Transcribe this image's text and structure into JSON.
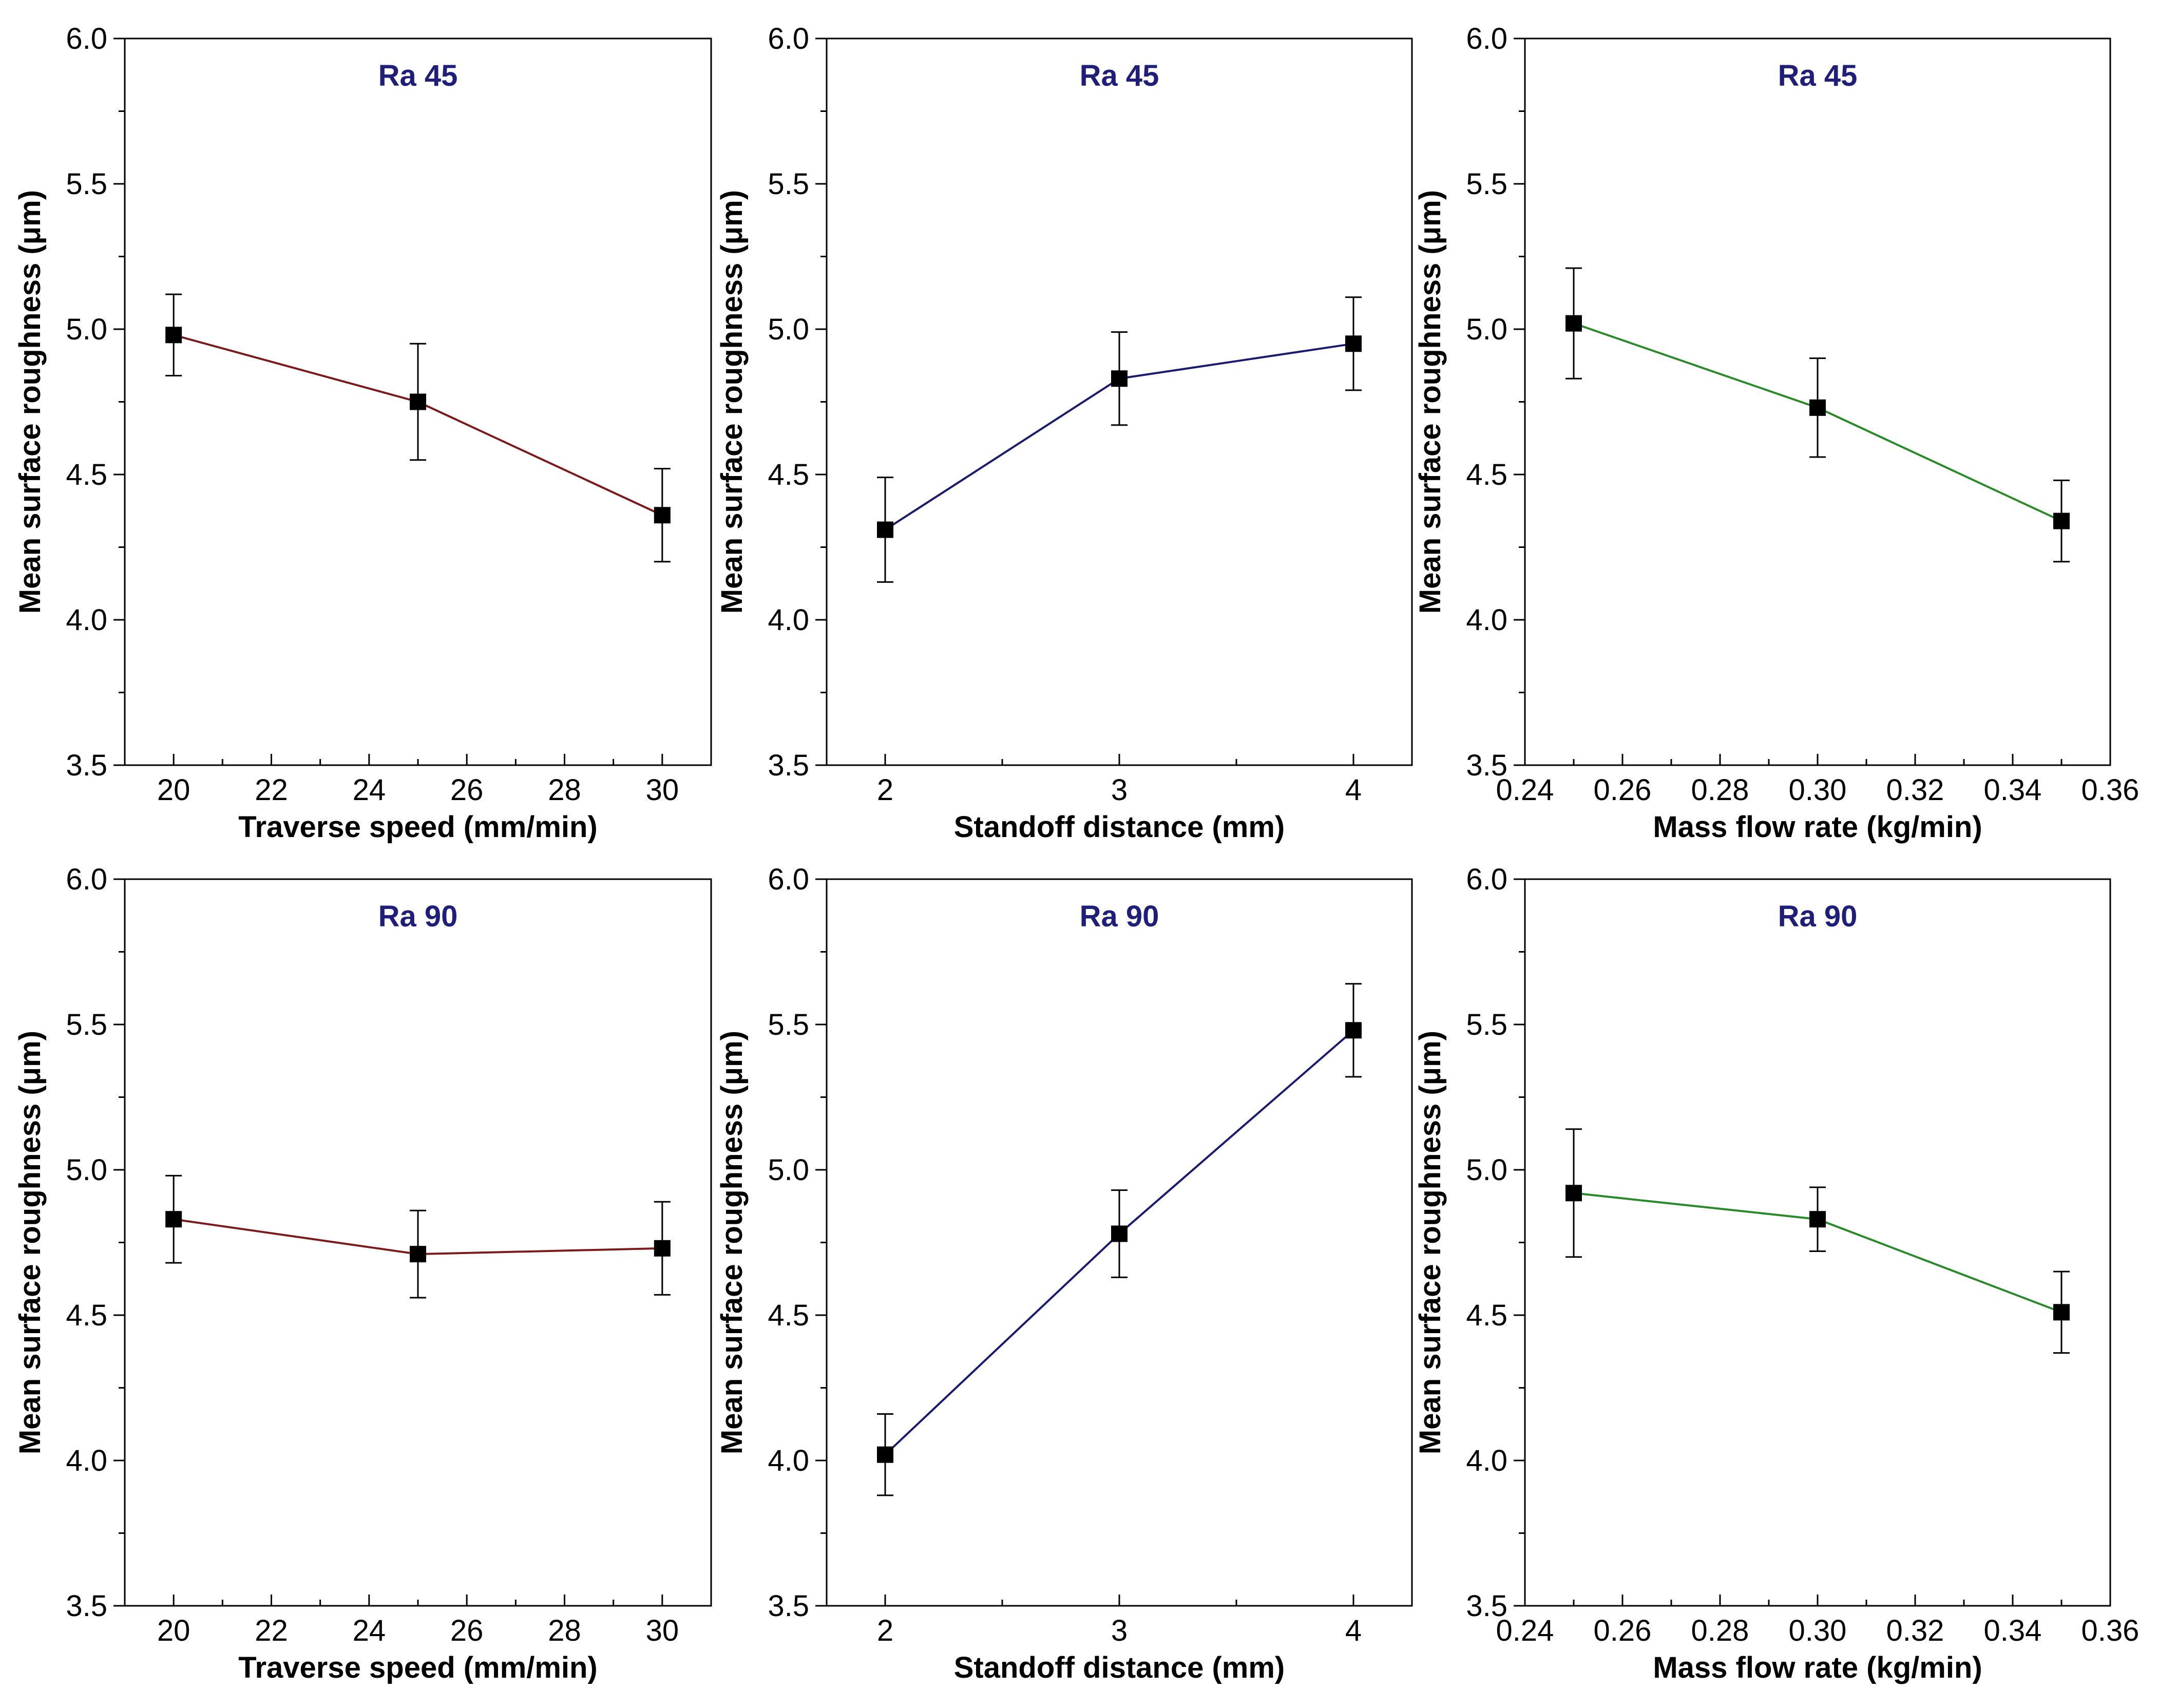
{
  "figure": {
    "colors": {
      "axis": "#000000",
      "title": "#1f1f7a",
      "marker": "#000000"
    }
  },
  "chart_data": [
    {
      "type": "line",
      "title": "Ra 45",
      "xlabel": "Traverse speed (mm/min)",
      "ylabel": "Mean surface roughness (μm)",
      "x": [
        20,
        25,
        30
      ],
      "y": [
        4.98,
        4.75,
        4.36
      ],
      "error": [
        0.14,
        0.2,
        0.16
      ],
      "xlim": [
        19,
        31
      ],
      "ylim": [
        3.5,
        6.0
      ],
      "xticks": [
        20,
        22,
        24,
        26,
        28,
        30
      ],
      "xtick_labels": [
        "20",
        "22",
        "24",
        "26",
        "28",
        "30"
      ],
      "yticks": [
        3.5,
        4.0,
        4.5,
        5.0,
        5.5,
        6.0
      ],
      "ytick_labels": [
        "3.5",
        "4.0",
        "4.5",
        "5.0",
        "5.5",
        "6.0"
      ],
      "line_color": "#7a1a1a",
      "grid": false
    },
    {
      "type": "line",
      "title": "Ra 45",
      "xlabel": "Standoff distance (mm)",
      "ylabel": "Mean surface roughness (μm)",
      "x": [
        2,
        3,
        4
      ],
      "y": [
        4.31,
        4.83,
        4.95
      ],
      "error": [
        0.18,
        0.16,
        0.16
      ],
      "xlim": [
        1.75,
        4.25
      ],
      "ylim": [
        3.5,
        6.0
      ],
      "xticks": [
        2,
        3,
        4
      ],
      "xtick_labels": [
        "2",
        "3",
        "4"
      ],
      "yticks": [
        3.5,
        4.0,
        4.5,
        5.0,
        5.5,
        6.0
      ],
      "ytick_labels": [
        "3.5",
        "4.0",
        "4.5",
        "5.0",
        "5.5",
        "6.0"
      ],
      "line_color": "#1a1a6e",
      "grid": false
    },
    {
      "type": "line",
      "title": "Ra 45",
      "xlabel": "Mass flow rate (kg/min)",
      "ylabel": "Mean surface roughness (μm)",
      "x": [
        0.25,
        0.3,
        0.35
      ],
      "y": [
        5.02,
        4.73,
        4.34
      ],
      "error": [
        0.19,
        0.17,
        0.14
      ],
      "xlim": [
        0.24,
        0.36
      ],
      "ylim": [
        3.5,
        6.0
      ],
      "xticks": [
        0.24,
        0.26,
        0.28,
        0.3,
        0.32,
        0.34,
        0.36
      ],
      "xtick_labels": [
        "0.24",
        "0.26",
        "0.28",
        "0.30",
        "0.32",
        "0.34",
        "0.36"
      ],
      "yticks": [
        3.5,
        4.0,
        4.5,
        5.0,
        5.5,
        6.0
      ],
      "ytick_labels": [
        "3.5",
        "4.0",
        "4.5",
        "5.0",
        "5.5",
        "6.0"
      ],
      "line_color": "#2a8a2a",
      "grid": false
    },
    {
      "type": "line",
      "title": "Ra 90",
      "xlabel": "Traverse speed (mm/min)",
      "ylabel": "Mean surface roughness (μm)",
      "x": [
        20,
        25,
        30
      ],
      "y": [
        4.83,
        4.71,
        4.73
      ],
      "error": [
        0.15,
        0.15,
        0.16
      ],
      "xlim": [
        19,
        31
      ],
      "ylim": [
        3.5,
        6.0
      ],
      "xticks": [
        20,
        22,
        24,
        26,
        28,
        30
      ],
      "xtick_labels": [
        "20",
        "22",
        "24",
        "26",
        "28",
        "30"
      ],
      "yticks": [
        3.5,
        4.0,
        4.5,
        5.0,
        5.5,
        6.0
      ],
      "ytick_labels": [
        "3.5",
        "4.0",
        "4.5",
        "5.0",
        "5.5",
        "6.0"
      ],
      "line_color": "#7a1a1a",
      "grid": false
    },
    {
      "type": "line",
      "title": "Ra 90",
      "xlabel": "Standoff distance (mm)",
      "ylabel": "Mean surface roughness (μm)",
      "x": [
        2,
        3,
        4
      ],
      "y": [
        4.02,
        4.78,
        5.48
      ],
      "error": [
        0.14,
        0.15,
        0.16
      ],
      "xlim": [
        1.75,
        4.25
      ],
      "ylim": [
        3.5,
        6.0
      ],
      "xticks": [
        2,
        3,
        4
      ],
      "xtick_labels": [
        "2",
        "3",
        "4"
      ],
      "yticks": [
        3.5,
        4.0,
        4.5,
        5.0,
        5.5,
        6.0
      ],
      "ytick_labels": [
        "3.5",
        "4.0",
        "4.5",
        "5.0",
        "5.5",
        "6.0"
      ],
      "line_color": "#1a1a6e",
      "grid": false
    },
    {
      "type": "line",
      "title": "Ra 90",
      "xlabel": "Mass flow rate (kg/min)",
      "ylabel": "Mean surface roughness (μm)",
      "x": [
        0.25,
        0.3,
        0.35
      ],
      "y": [
        4.92,
        4.83,
        4.51
      ],
      "error": [
        0.22,
        0.11,
        0.14
      ],
      "xlim": [
        0.24,
        0.36
      ],
      "ylim": [
        3.5,
        6.0
      ],
      "xticks": [
        0.24,
        0.26,
        0.28,
        0.3,
        0.32,
        0.34,
        0.36
      ],
      "xtick_labels": [
        "0.24",
        "0.26",
        "0.28",
        "0.30",
        "0.32",
        "0.34",
        "0.36"
      ],
      "yticks": [
        3.5,
        4.0,
        4.5,
        5.0,
        5.5,
        6.0
      ],
      "ytick_labels": [
        "3.5",
        "4.0",
        "4.5",
        "5.0",
        "5.5",
        "6.0"
      ],
      "line_color": "#2a8a2a",
      "grid": false
    }
  ]
}
